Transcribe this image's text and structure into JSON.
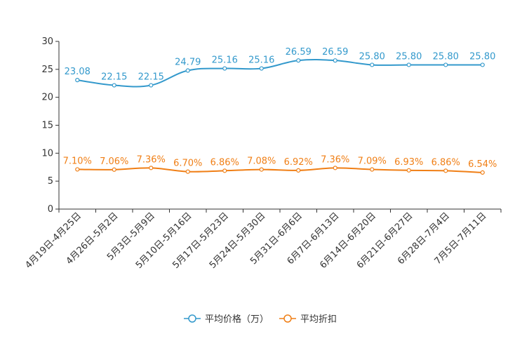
{
  "chart_data": {
    "type": "line",
    "categories": [
      "4月19日-4月25日",
      "4月26日-5月2日",
      "5月3日-5月9日",
      "5月10日-5月16日",
      "5月17日-5月23日",
      "5月24日-5月30日",
      "5月31日-6月6日",
      "6月7日-6月13日",
      "6月14日-6月20日",
      "6月21日-6月27日",
      "6月28日-7月4日",
      "7月5日-7月11日"
    ],
    "ylim": [
      0,
      30
    ],
    "yticks": [
      "0",
      "5",
      "10",
      "15",
      "20",
      "25",
      "30"
    ],
    "series": [
      {
        "name": "平均价格（万）",
        "color": "#3399cc",
        "values": [
          23.08,
          22.15,
          22.15,
          24.79,
          25.16,
          25.16,
          26.59,
          26.59,
          25.8,
          25.8,
          25.8,
          25.8
        ],
        "labels": [
          "23.08",
          "22.15",
          "22.15",
          "24.79",
          "25.16",
          "25.16",
          "26.59",
          "26.59",
          "25.80",
          "25.80",
          "25.80",
          "25.80"
        ]
      },
      {
        "name": "平均折扣",
        "color": "#f07f16",
        "values": [
          7.1,
          7.06,
          7.36,
          6.7,
          6.86,
          7.08,
          6.92,
          7.36,
          7.09,
          6.93,
          6.86,
          6.54
        ],
        "labels": [
          "7.10%",
          "7.06%",
          "7.36%",
          "6.70%",
          "6.86%",
          "7.08%",
          "6.92%",
          "7.36%",
          "7.09%",
          "6.93%",
          "6.86%",
          "6.54%"
        ]
      }
    ]
  }
}
